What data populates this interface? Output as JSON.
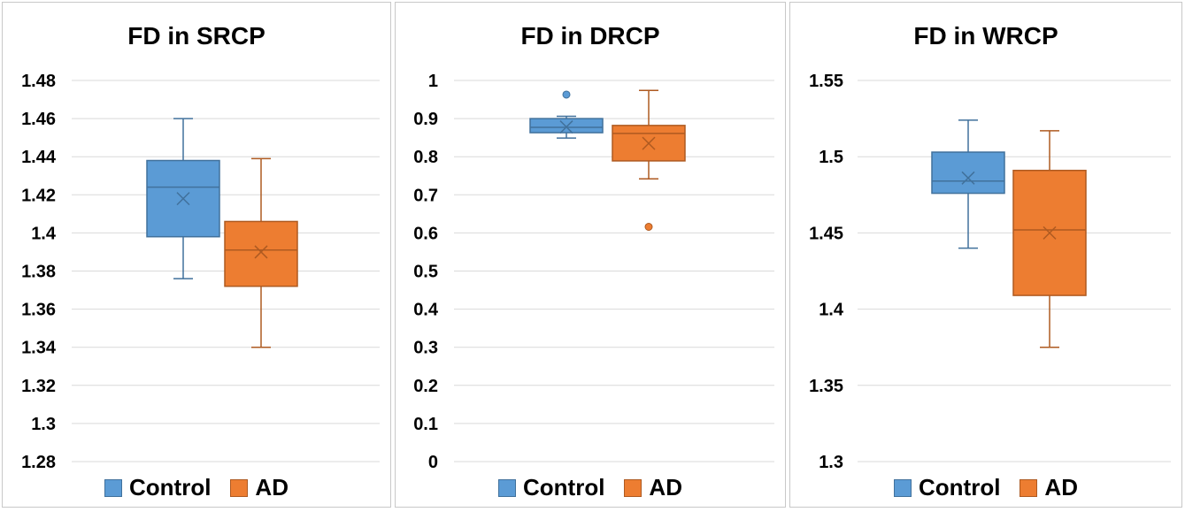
{
  "chart_data": [
    {
      "type": "box",
      "title": "FD in SRCP",
      "yticks": [
        "1.28",
        "1.3",
        "1.32",
        "1.34",
        "1.36",
        "1.38",
        "1.4",
        "1.42",
        "1.44",
        "1.46",
        "1.48"
      ],
      "ylim": [
        1.28,
        1.48
      ],
      "legend_position": "bottom",
      "grid": true,
      "series": [
        {
          "name": "Control",
          "color": "#5b9bd5",
          "edge": "#41719c",
          "min": 1.376,
          "q1": 1.398,
          "median": 1.424,
          "q3": 1.438,
          "max": 1.46,
          "mean": 1.418,
          "outliers": []
        },
        {
          "name": "AD",
          "color": "#ed7d31",
          "edge": "#ae5a21",
          "min": 1.34,
          "q1": 1.372,
          "median": 1.391,
          "q3": 1.406,
          "max": 1.439,
          "mean": 1.39,
          "outliers": []
        }
      ]
    },
    {
      "type": "box",
      "title": "FD in DRCP",
      "yticks": [
        "0",
        "0.1",
        "0.2",
        "0.3",
        "0.4",
        "0.5",
        "0.6",
        "0.7",
        "0.8",
        "0.9",
        "1"
      ],
      "ylim": [
        0,
        1
      ],
      "legend_position": "bottom",
      "grid": true,
      "series": [
        {
          "name": "Control",
          "color": "#5b9bd5",
          "edge": "#41719c",
          "min": 0.849,
          "q1": 0.863,
          "median": 0.877,
          "q3": 0.9,
          "max": 0.906,
          "mean": 0.878,
          "outliers": [
            0.963
          ]
        },
        {
          "name": "AD",
          "color": "#ed7d31",
          "edge": "#ae5a21",
          "min": 0.742,
          "q1": 0.789,
          "median": 0.861,
          "q3": 0.882,
          "max": 0.974,
          "mean": 0.835,
          "outliers": [
            0.616
          ]
        }
      ]
    },
    {
      "type": "box",
      "title": "FD in WRCP",
      "yticks": [
        "1.3",
        "1.35",
        "1.4",
        "1.45",
        "1.5",
        "1.55"
      ],
      "ylim": [
        1.3,
        1.55
      ],
      "legend_position": "bottom",
      "grid": true,
      "series": [
        {
          "name": "Control",
          "color": "#5b9bd5",
          "edge": "#41719c",
          "min": 1.44,
          "q1": 1.476,
          "median": 1.484,
          "q3": 1.503,
          "max": 1.524,
          "mean": 1.486,
          "outliers": []
        },
        {
          "name": "AD",
          "color": "#ed7d31",
          "edge": "#ae5a21",
          "min": 1.375,
          "q1": 1.409,
          "median": 1.452,
          "q3": 1.491,
          "max": 1.517,
          "mean": 1.45,
          "outliers": []
        }
      ]
    }
  ]
}
